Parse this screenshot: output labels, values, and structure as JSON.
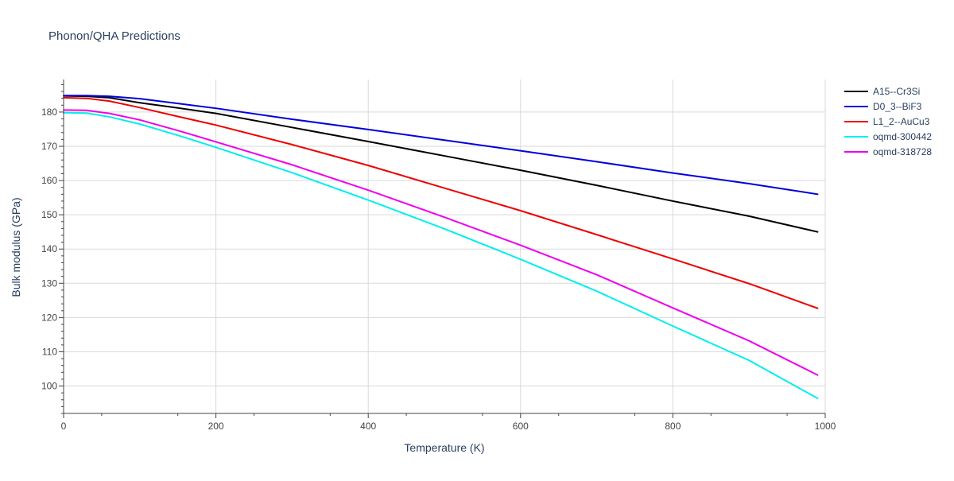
{
  "chart_data": {
    "type": "line",
    "title": "Phonon/QHA Predictions",
    "xlabel": "Temperature (K)",
    "ylabel": "Bulk modulus (GPa)",
    "xlim": [
      0,
      1000
    ],
    "ylim": [
      92,
      189.5
    ],
    "xticks": [
      0,
      200,
      400,
      600,
      800,
      1000
    ],
    "yticks": [
      100,
      110,
      120,
      130,
      140,
      150,
      160,
      170,
      180
    ],
    "grid": true,
    "legend_position": "right",
    "series": [
      {
        "name": "A15--Cr3Si",
        "color": "#000000",
        "x": [
          0,
          30,
          60,
          100,
          150,
          200,
          300,
          400,
          500,
          600,
          700,
          800,
          900,
          990
        ],
        "y": [
          184.7,
          184.6,
          184.2,
          182.7,
          181.2,
          179.6,
          175.5,
          171.4,
          167.2,
          163.0,
          158.6,
          154.0,
          149.6,
          145.0
        ]
      },
      {
        "name": "D0_3--BiF3",
        "color": "#0000dd",
        "x": [
          0,
          30,
          60,
          100,
          150,
          200,
          300,
          400,
          500,
          600,
          700,
          800,
          900,
          990
        ],
        "y": [
          184.8,
          184.8,
          184.6,
          183.9,
          182.5,
          181.1,
          177.9,
          174.9,
          171.8,
          168.7,
          165.5,
          162.2,
          159.1,
          156.0
        ]
      },
      {
        "name": "L1_2--AuCu3",
        "color": "#ee0000",
        "x": [
          0,
          30,
          60,
          100,
          150,
          200,
          300,
          400,
          500,
          600,
          700,
          800,
          900,
          990
        ],
        "y": [
          184.2,
          184.0,
          183.2,
          181.3,
          178.7,
          176.2,
          170.5,
          164.4,
          157.8,
          151.2,
          144.2,
          137.1,
          129.9,
          122.7
        ]
      },
      {
        "name": "oqmd-300442",
        "color": "#00eeee",
        "x": [
          0,
          30,
          60,
          100,
          150,
          200,
          300,
          400,
          500,
          600,
          700,
          800,
          900,
          990
        ],
        "y": [
          179.8,
          179.7,
          178.6,
          176.5,
          173.2,
          169.7,
          162.3,
          154.3,
          145.9,
          137.0,
          127.7,
          117.5,
          107.5,
          96.4
        ]
      },
      {
        "name": "oqmd-318728",
        "color": "#ee00ee",
        "x": [
          0,
          30,
          60,
          100,
          150,
          200,
          300,
          400,
          500,
          600,
          700,
          800,
          900,
          990
        ],
        "y": [
          180.6,
          180.5,
          179.6,
          177.7,
          174.6,
          171.3,
          164.6,
          157.2,
          149.3,
          141.1,
          132.5,
          122.8,
          113.2,
          103.2
        ]
      }
    ]
  }
}
